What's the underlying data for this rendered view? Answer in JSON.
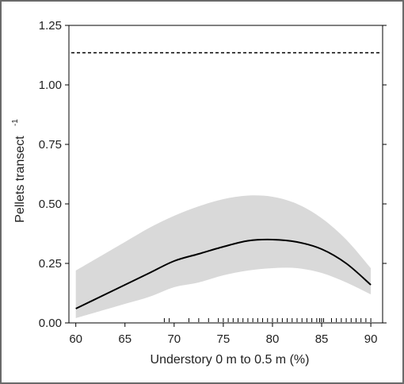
{
  "chart_data": {
    "type": "line",
    "xlabel": "Understory 0 m to 0.5 m (%)",
    "ylabel": "Pellets transect",
    "ylabel_superscript": "-1",
    "xlim": [
      59.3,
      91.2
    ],
    "ylim": [
      0,
      1.25
    ],
    "x_ticks": [
      60,
      65,
      70,
      75,
      80,
      85,
      90
    ],
    "x_tick_labels": [
      "60",
      "65",
      "70",
      "75",
      "80",
      "85",
      "90"
    ],
    "y_ticks": [
      0,
      0.25,
      0.5,
      0.75,
      1.0,
      1.25
    ],
    "y_tick_labels": [
      "0.00",
      "0.25",
      "0.50",
      "0.75",
      "1.00",
      "1.25"
    ],
    "grid": false,
    "legend": "none",
    "reference_line": {
      "y": 1.135,
      "style": "dashed"
    },
    "series": [
      {
        "x": [
          60,
          62.5,
          65,
          67.5,
          70,
          72.5,
          75,
          77.5,
          80,
          82.5,
          85,
          87.5,
          90
        ],
        "values": [
          0.06,
          0.11,
          0.16,
          0.21,
          0.26,
          0.29,
          0.32,
          0.345,
          0.35,
          0.34,
          0.31,
          0.25,
          0.16
        ],
        "lower": [
          0.02,
          0.05,
          0.08,
          0.11,
          0.15,
          0.17,
          0.2,
          0.22,
          0.23,
          0.23,
          0.21,
          0.17,
          0.12
        ],
        "upper": [
          0.22,
          0.28,
          0.34,
          0.4,
          0.45,
          0.49,
          0.52,
          0.535,
          0.53,
          0.5,
          0.44,
          0.35,
          0.23
        ]
      }
    ],
    "rug_x": [
      69,
      69.5,
      71.5,
      72.5,
      73.5,
      74.5,
      75,
      75.5,
      76,
      76.5,
      77,
      77.5,
      78,
      78.5,
      79,
      79.5,
      80,
      80.5,
      81,
      81.5,
      82,
      82.5,
      83,
      83.5,
      84,
      84.5,
      84.8,
      85,
      85.2,
      86,
      86.5,
      87,
      87.5,
      88,
      88.5,
      89,
      89.5,
      90
    ],
    "colors": {
      "line": "#000000",
      "band": "#d9d9d9",
      "axis": "#000000",
      "frame": "#6a6a6a"
    }
  }
}
